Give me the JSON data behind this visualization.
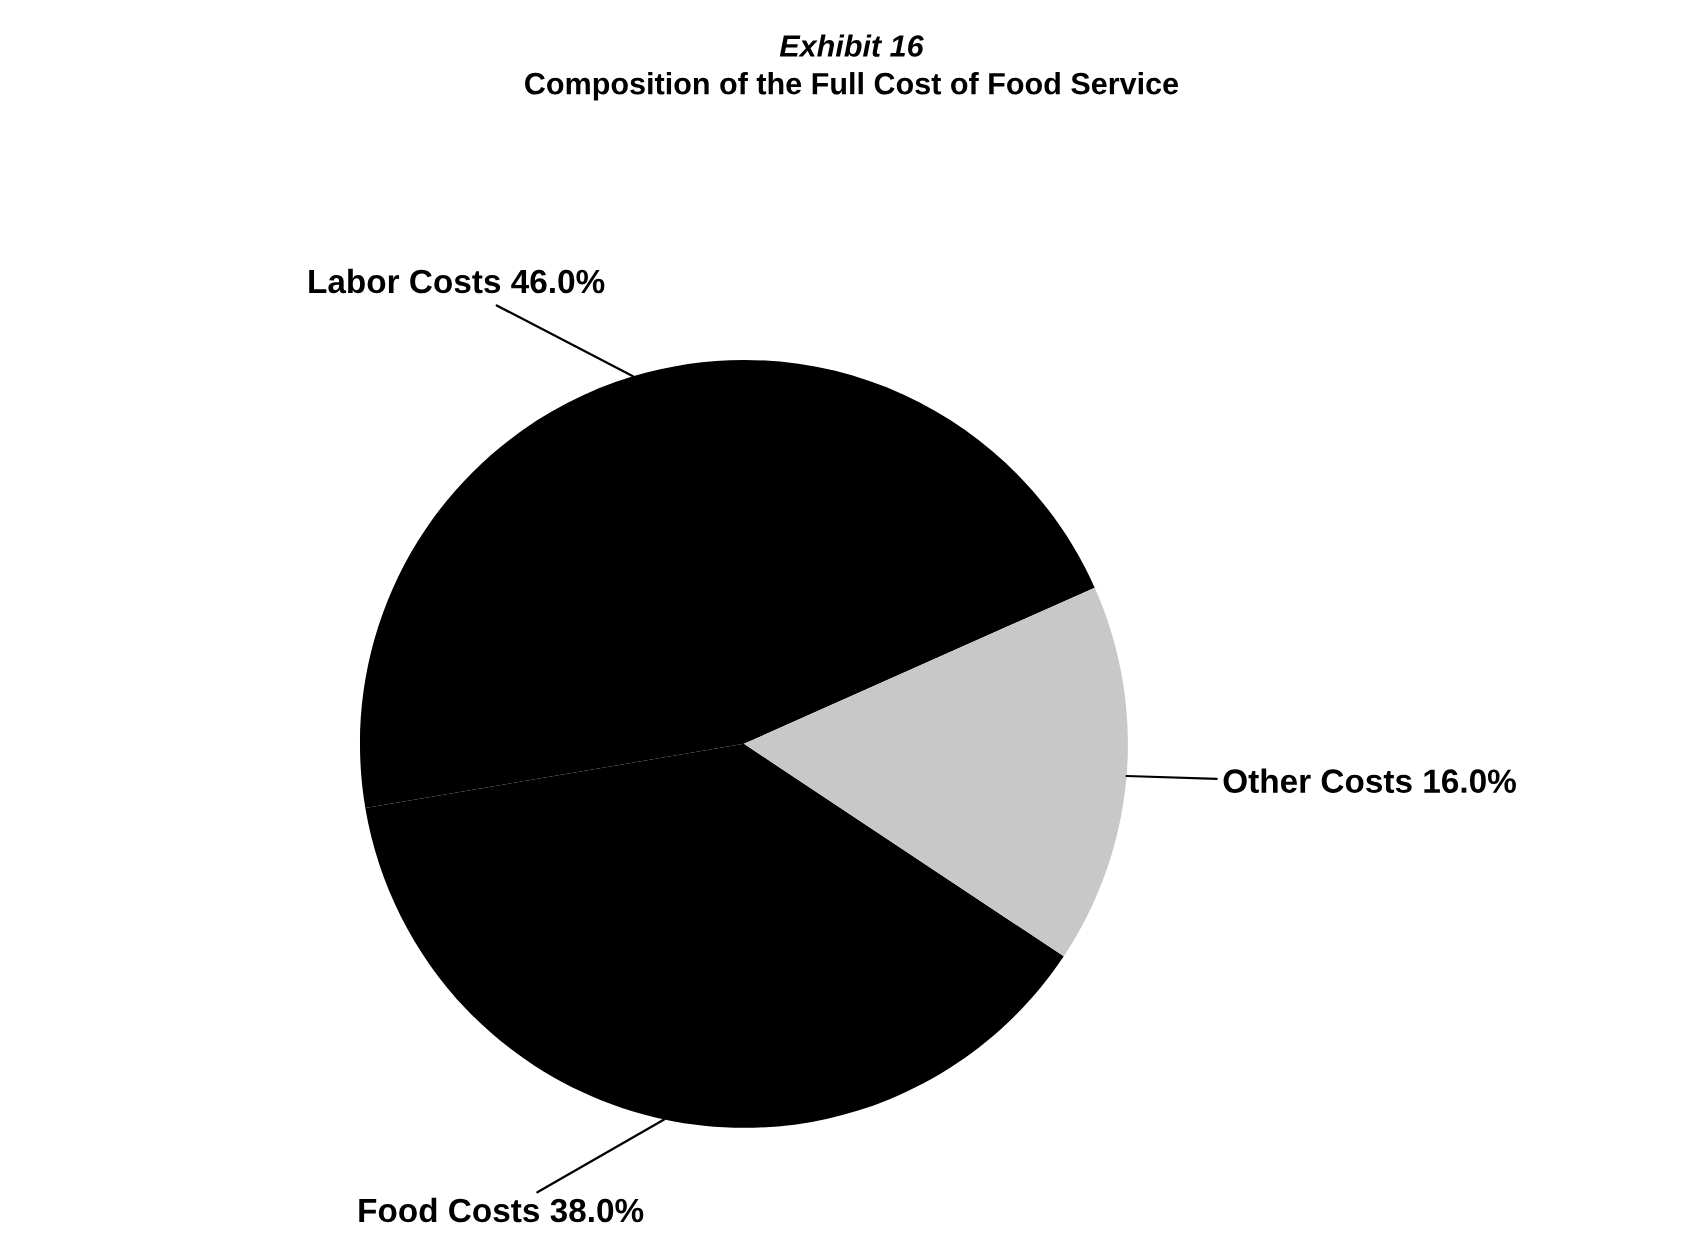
{
  "chart_data": {
    "type": "pie",
    "title": "Composition of the Full Cost of Food Service",
    "subtitle": "Exhibit 16",
    "categories": [
      "Labor Costs",
      "Food Costs",
      "Other Costs"
    ],
    "values": [
      46.0,
      38.0,
      16.0
    ],
    "value_labels": [
      "46.0%",
      "38.0%",
      "16.0%"
    ],
    "colors": [
      "#000000",
      "#000000",
      "#c8c8c8"
    ],
    "legend": false
  }
}
